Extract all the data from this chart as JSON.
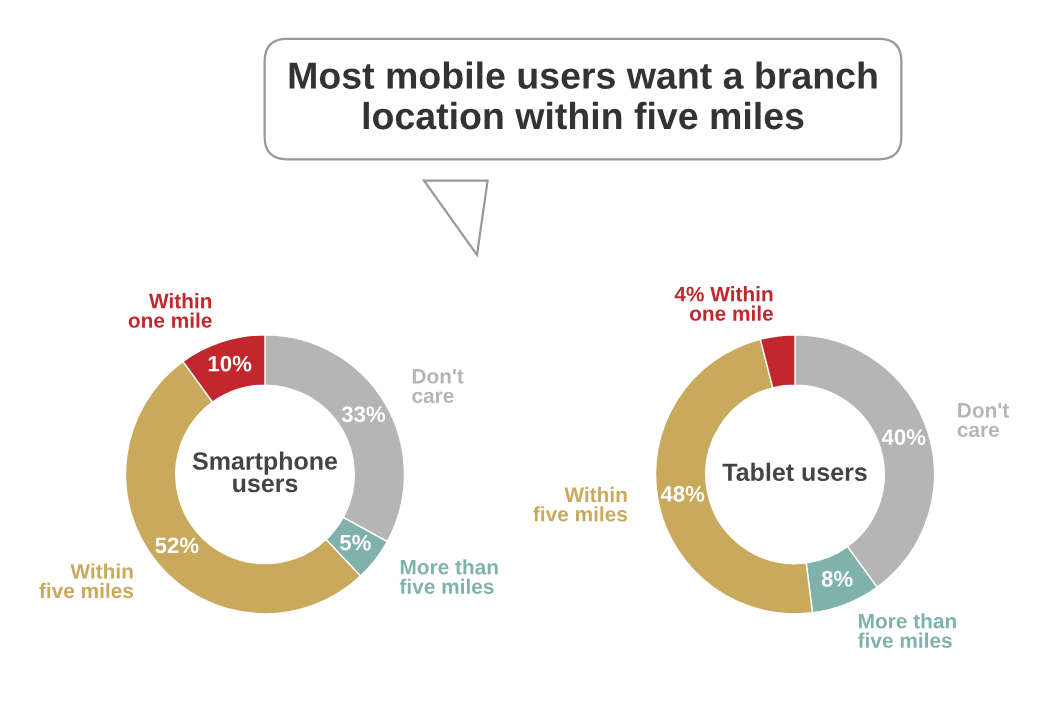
{
  "chart_data": [
    {
      "type": "donut",
      "title": "Smartphone\nusers",
      "annotations": [
        "Most mobile users want a branch\nlocation within five miles"
      ],
      "categories": [
        "Don't\ncare",
        "More than\nfive miles",
        "Within\nfive miles",
        "Within\none mile"
      ],
      "values": [
        33,
        5,
        52,
        10
      ],
      "value_labels": [
        "33%",
        "5%",
        "52%",
        "10%"
      ],
      "colors": [
        "#b5b5b5",
        "#7fb2ab",
        "#c9a95b",
        "#c1272d"
      ]
    },
    {
      "type": "donut",
      "title": "Tablet users",
      "categories": [
        "Don't\ncare",
        "More than\nfive miles",
        "Within\nfive miles",
        "Within\none mile"
      ],
      "values": [
        40,
        8,
        48,
        4
      ],
      "value_labels": [
        "40%",
        "8%",
        "48%",
        "4%"
      ],
      "colors": [
        "#b5b5b5",
        "#7fb2ab",
        "#c9a95b",
        "#c1272d"
      ]
    }
  ]
}
